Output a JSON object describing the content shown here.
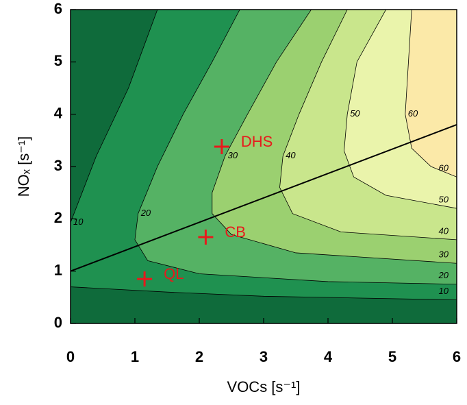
{
  "chart_data": {
    "type": "contour",
    "xlabel": "VOCs [s⁻¹]",
    "ylabel": "NOₓ [s⁻¹]",
    "xlim": [
      0,
      6
    ],
    "ylim": [
      0,
      6
    ],
    "xticks": [
      0,
      1,
      2,
      3,
      4,
      5,
      6
    ],
    "yticks": [
      0,
      1,
      2,
      3,
      4,
      5,
      6
    ],
    "background": "#0f6b3b",
    "contours": [
      {
        "level": 10,
        "color": "#1f9150",
        "x": [
          1.35,
          0.9,
          0.4,
          0,
          0,
          1.5,
          3,
          6
        ],
        "y": [
          6,
          4.5,
          3.2,
          1.93,
          0.7,
          0.6,
          0.52,
          0.45
        ]
      },
      {
        "level": 20,
        "color": "#55b264",
        "x": [
          2.63,
          2.2,
          1.75,
          1.35,
          1.05,
          1.0,
          1.2,
          2,
          4,
          6
        ],
        "y": [
          6,
          5,
          4,
          3,
          2.1,
          1.6,
          1.2,
          0.95,
          0.8,
          0.75
        ]
      },
      {
        "level": 30,
        "color": "#9bd070",
        "x": [
          3.74,
          3.2,
          2.75,
          2.4,
          2.2,
          2.2,
          2.5,
          3.5,
          6
        ],
        "y": [
          6,
          5,
          4,
          3.2,
          2.5,
          2.1,
          1.7,
          1.35,
          1.15
        ]
      },
      {
        "level": 40,
        "color": "#c9e68c",
        "x": [
          4.3,
          3.9,
          3.55,
          3.3,
          3.25,
          3.45,
          4.2,
          6
        ],
        "y": [
          6,
          5,
          4,
          3.2,
          2.6,
          2.1,
          1.75,
          1.6
        ]
      },
      {
        "level": 50,
        "color": "#eaf4ab",
        "x": [
          4.9,
          4.45,
          4.3,
          4.25,
          4.4,
          4.9,
          6
        ],
        "y": [
          6,
          5,
          4,
          3.3,
          2.8,
          2.45,
          2.2
        ]
      },
      {
        "level": 60,
        "color": "#fbe9a8",
        "x": [
          5.3,
          5.25,
          5.2,
          5.3,
          5.6,
          6
        ],
        "y": [
          6,
          5,
          4,
          3.35,
          3.0,
          2.8
        ]
      }
    ],
    "line": {
      "color": "#000000",
      "x": [
        0,
        6
      ],
      "y": [
        1.0,
        3.8
      ]
    },
    "points": [
      {
        "name": "QL",
        "color": "#e8191c",
        "x": 1.15,
        "y": 0.85
      },
      {
        "name": "CB",
        "color": "#e8191c",
        "x": 2.1,
        "y": 1.65
      },
      {
        "name": "DHS",
        "color": "#e8191c",
        "x": 2.35,
        "y": 3.38
      }
    ]
  }
}
